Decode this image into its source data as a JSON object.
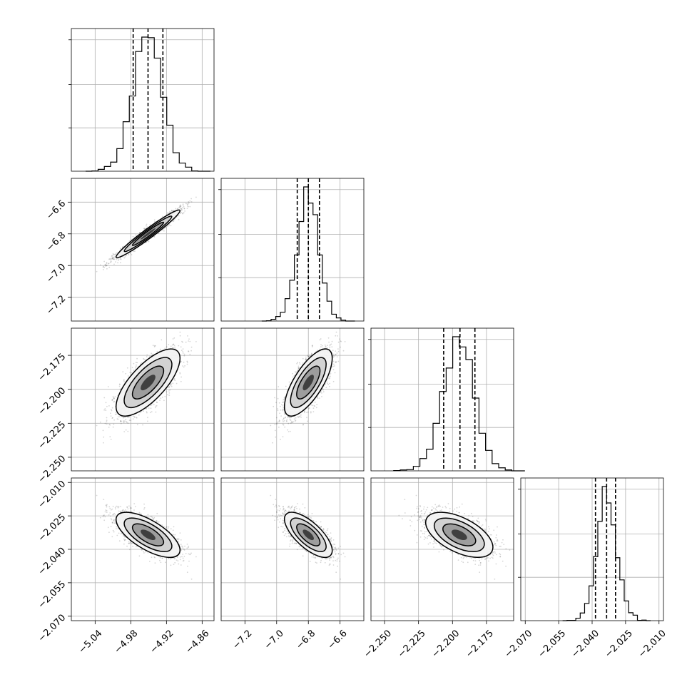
{
  "chart_data": {
    "type": "corner",
    "grid": true,
    "colors": {
      "line": "#000000",
      "grid": "#b0b0b0",
      "density": "#000000",
      "samples": "#808080"
    },
    "parameters": [
      {
        "range": [
          -5.08,
          -4.84
        ],
        "ticks": [
          -5.04,
          -4.98,
          -4.92,
          -4.86
        ],
        "tick_labels": [
          "−5.04",
          "−4.98",
          "−4.92",
          "−4.86"
        ],
        "quantiles": [
          -4.976,
          -4.951,
          -4.926
        ],
        "center": -4.951,
        "sigma": 0.025
      },
      {
        "range": [
          -7.35,
          -6.45
        ],
        "ticks": [
          -7.2,
          -7.0,
          -6.8,
          -6.6
        ],
        "tick_labels": [
          "−7.2",
          "−7.0",
          "−6.8",
          "−6.6"
        ],
        "quantiles": [
          -6.87,
          -6.8,
          -6.73
        ],
        "center": -6.8,
        "sigma": 0.07
      },
      {
        "range": [
          -2.26,
          -2.155
        ],
        "ticks": [
          -2.25,
          -2.225,
          -2.2,
          -2.175
        ],
        "tick_labels": [
          "−2.250",
          "−2.225",
          "−2.200",
          "−2.175"
        ],
        "quantiles": [
          -2.2065,
          -2.1945,
          -2.1835
        ],
        "center": -2.195,
        "sigma": 0.0115
      },
      {
        "range": [
          -2.072,
          -2.008
        ],
        "ticks": [
          -2.07,
          -2.055,
          -2.04,
          -2.025,
          -2.01
        ],
        "tick_labels": [
          "−2.070",
          "−2.055",
          "−2.040",
          "−2.025",
          "−2.010"
        ],
        "quantiles": [
          -2.0385,
          -2.0335,
          -2.0295
        ],
        "center": -2.0335,
        "sigma": 0.0047
      }
    ],
    "correlations": [
      {
        "i": 1,
        "j": 0,
        "rho": 0.97
      },
      {
        "i": 2,
        "j": 0,
        "rho": 0.72
      },
      {
        "i": 2,
        "j": 1,
        "rho": 0.72
      },
      {
        "i": 3,
        "j": 0,
        "rho": -0.68
      },
      {
        "i": 3,
        "j": 1,
        "rho": -0.7
      },
      {
        "i": 3,
        "j": 2,
        "rho": -0.55
      }
    ]
  }
}
